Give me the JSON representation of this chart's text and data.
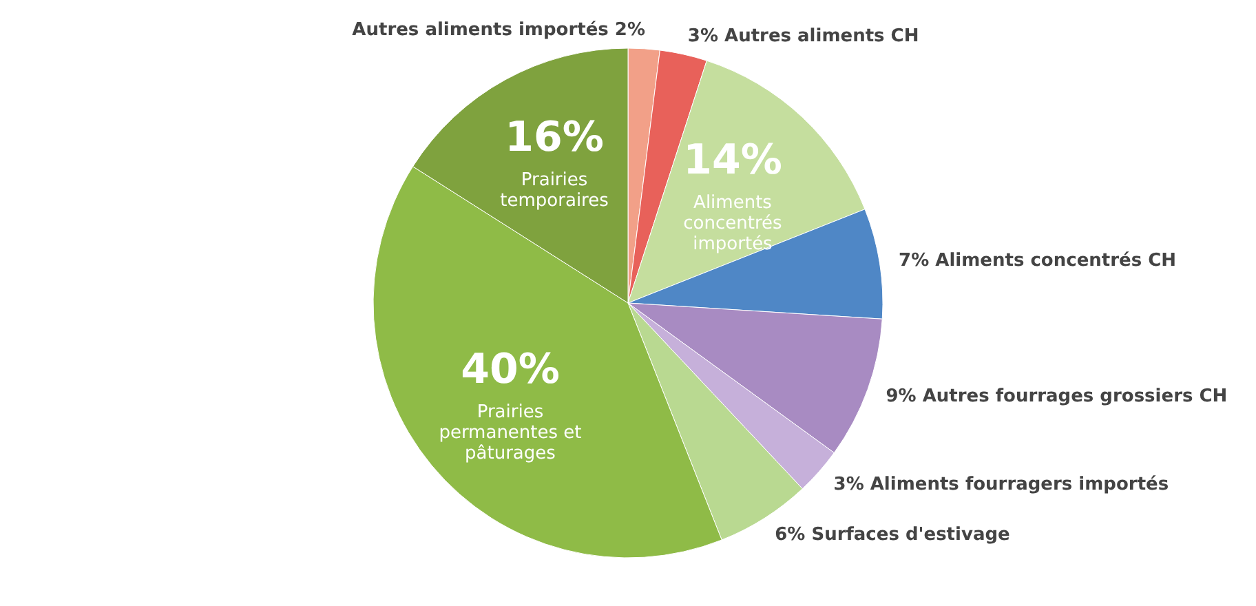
{
  "chart_data": {
    "type": "pie",
    "categories": [
      "Autres aliments importés",
      "Autres aliments CH",
      "Aliments concentrés importés",
      "Aliments concentrés CH",
      "Autres fourrages grossiers CH",
      "Aliments fourragers importés",
      "Surfaces d'estivage",
      "Prairies permanentes et pâturages",
      "Prairies temporaires"
    ],
    "values": [
      2,
      3,
      14,
      7,
      9,
      3,
      6,
      40,
      16
    ],
    "colors": [
      "#f2a088",
      "#e8615a",
      "#c5de9e",
      "#4f87c6",
      "#a88bc2",
      "#c6b0da",
      "#b9d991",
      "#8fbb47",
      "#7fa23e"
    ],
    "value_labels": [
      "2%",
      "3%",
      "14%",
      "7%",
      "9%",
      "3%",
      "6%",
      "40%",
      "16%"
    ]
  }
}
